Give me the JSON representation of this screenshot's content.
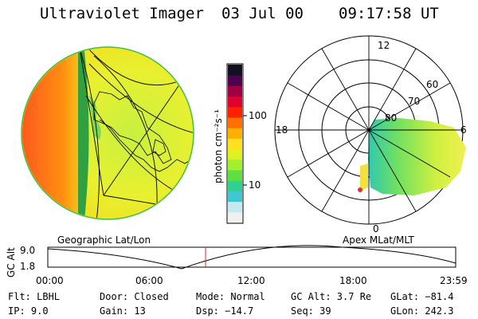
{
  "header": {
    "title": "Ultraviolet Imager",
    "date": "03 Jul 00",
    "time": "09:17:58 UT"
  },
  "colorbar": {
    "label": "photon cm⁻²s⁻¹",
    "ticks": [
      "100",
      "10"
    ],
    "colors": [
      "#f0f0f0",
      "#c8e8f0",
      "#40c8d0",
      "#30d090",
      "#60e040",
      "#a0f030",
      "#e0f020",
      "#ffe020",
      "#ffb000",
      "#ff7000",
      "#ff2000",
      "#e00030",
      "#a00040",
      "#500050",
      "#101020"
    ]
  },
  "polar": {
    "mlt_labels": {
      "top": "12",
      "left": "18",
      "right": "6",
      "bottom": "0"
    },
    "lat_labels": [
      "60",
      "70",
      "80"
    ]
  },
  "timeline": {
    "ylabel": "GC Alt",
    "ymax": "9.0",
    "ymin": "1.8",
    "left_title": "Geographic Lat/Lon",
    "right_title": "Apex MLat/MLT",
    "xticks": [
      "00:00",
      "06:00",
      "12:00",
      "18:00",
      "23:59"
    ],
    "marker_color": "#c03030"
  },
  "info": {
    "flt": "Flt: LBHL",
    "ip": "IP:  9.0",
    "door": "Door: Closed",
    "gain": "Gain: 13",
    "mode": "Mode: Normal",
    "dsp": "Dsp:  −14.7",
    "gcalt": "GC Alt: 3.7 Re",
    "seq": "Seq: 39",
    "glat": "GLat: −81.4",
    "glon": "GLon: 242.3"
  }
}
